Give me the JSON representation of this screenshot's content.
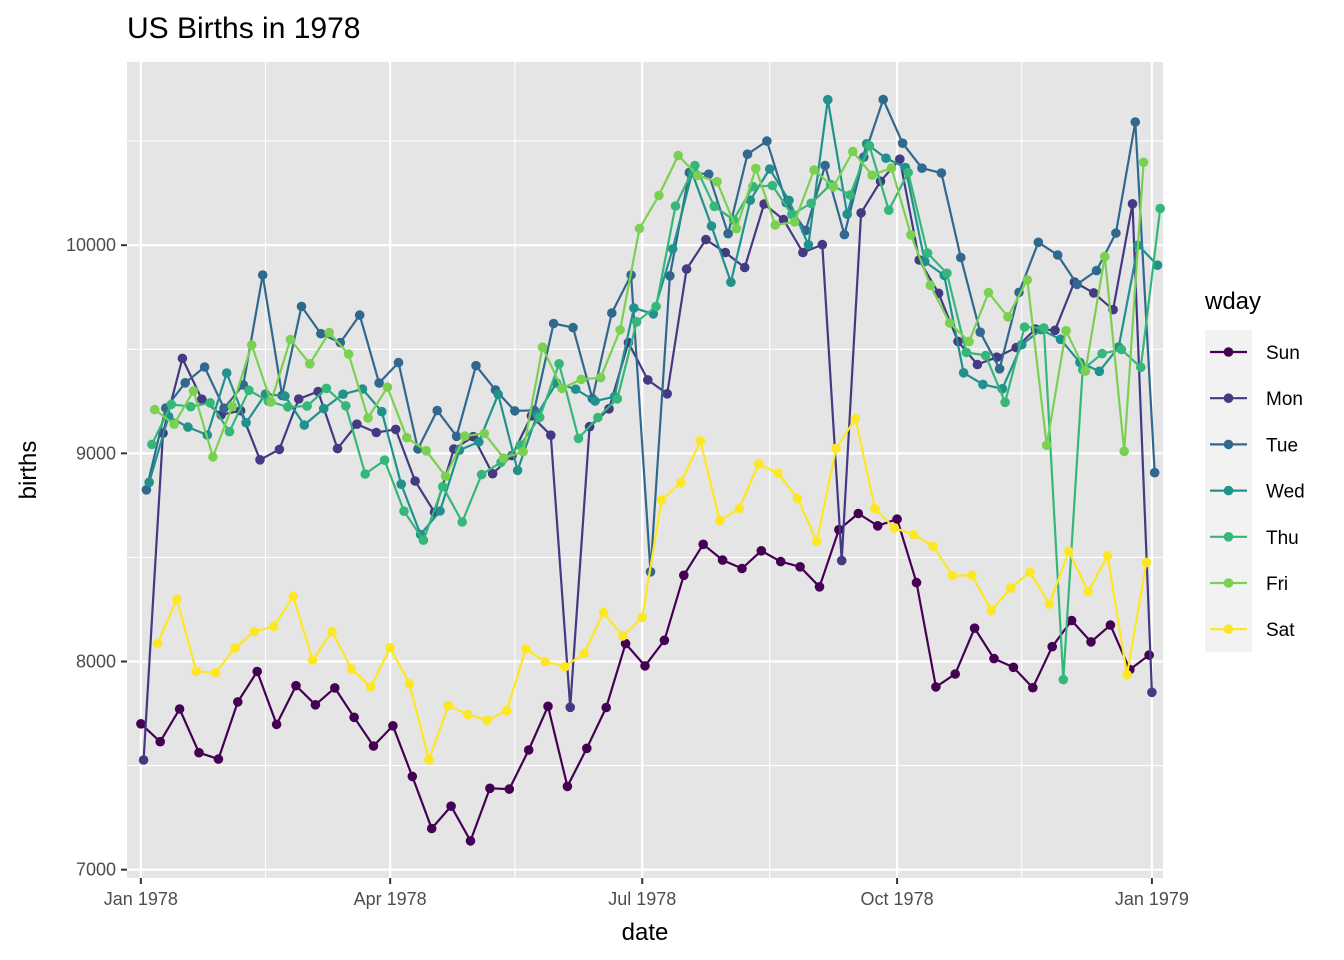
{
  "chart_data": {
    "type": "line",
    "title": "US Births in 1978",
    "xlabel": "date",
    "ylabel": "births",
    "x_axis": {
      "type": "date",
      "range": [
        "1977-12-27",
        "1979-01-05"
      ],
      "ticks": [
        {
          "date": "1978-01-01",
          "label": "Jan 1978"
        },
        {
          "date": "1978-04-01",
          "label": "Apr 1978"
        },
        {
          "date": "1978-07-01",
          "label": "Jul 1978"
        },
        {
          "date": "1978-10-01",
          "label": "Oct 1978"
        },
        {
          "date": "1979-01-01",
          "label": "Jan 1979"
        }
      ],
      "minor_ticks": [
        "1978-02-15",
        "1978-05-16",
        "1978-08-16",
        "1978-11-15"
      ]
    },
    "y_axis": {
      "range": [
        6960,
        10880
      ],
      "ticks": [
        7000,
        8000,
        9000,
        10000
      ],
      "minor_ticks": [
        7500,
        8500,
        9500,
        10500
      ]
    },
    "grid": true,
    "legend": {
      "title": "wday",
      "placement": "right"
    },
    "colors": {
      "panel_background": "#e5e5e5",
      "grid": "#ffffff"
    },
    "series": [
      {
        "name": "Sun",
        "color": "#440154",
        "start": "1978-01-01",
        "values": [
          7701,
          7615,
          7772,
          7562,
          7531,
          7806,
          7952,
          7698,
          7884,
          7792,
          7873,
          7732,
          7594,
          7691,
          7448,
          7198,
          7305,
          7138,
          7391,
          7387,
          7575,
          7785,
          7400,
          7583,
          7779,
          8086,
          7979,
          8102,
          8414,
          8563,
          8487,
          8447,
          8532,
          8480,
          8455,
          8359,
          8633,
          8711,
          8652,
          8684,
          8379,
          7878,
          7940,
          8160,
          8014,
          7972,
          7874,
          8071,
          8197,
          8094,
          8175,
          7961,
          8031
        ]
      },
      {
        "name": "Mon",
        "color": "#443983",
        "start": "1978-01-02",
        "values": [
          7527,
          9097,
          9456,
          9260,
          9185,
          9205,
          8969,
          9019,
          9261,
          9297,
          9023,
          9140,
          9100,
          9115,
          8867,
          8717,
          9021,
          9080,
          8902,
          8989,
          9180,
          9087,
          7780,
          9128,
          9214,
          9532,
          9353,
          9286,
          9885,
          10027,
          9965,
          9893,
          10198,
          10123,
          9965,
          10003,
          8485,
          10155,
          10307,
          10413,
          9929,
          9769,
          9538,
          9427,
          9462,
          9508,
          9597,
          9591,
          9823,
          9771,
          9690,
          10199,
          7852
        ]
      },
      {
        "name": "Tue",
        "color": "#31688e",
        "start": "1978-01-03",
        "values": [
          8825,
          9218,
          9339,
          9415,
          9217,
          9329,
          9857,
          9278,
          9706,
          9575,
          9532,
          9664,
          9338,
          9436,
          9021,
          9206,
          9082,
          9421,
          9305,
          9204,
          9207,
          9624,
          9604,
          9263,
          9674,
          9857,
          8431,
          9853,
          10349,
          10341,
          10055,
          10437,
          10500,
          10204,
          10071,
          10383,
          10051,
          10423,
          10700,
          10490,
          10370,
          10347,
          9941,
          9582,
          9406,
          9773,
          10014,
          9953,
          9812,
          9878,
          10058,
          10592,
          8907
        ]
      },
      {
        "name": "Wed",
        "color": "#21918c",
        "start": "1978-01-04",
        "values": [
          8861,
          9177,
          9126,
          9088,
          9386,
          9147,
          9285,
          9275,
          9136,
          9215,
          9284,
          9309,
          9200,
          8852,
          8610,
          8723,
          9015,
          9055,
          9283,
          8918,
          9185,
          9338,
          9308,
          9251,
          9272,
          9698,
          9670,
          9982,
          10348,
          10092,
          9822,
          10216,
          10366,
          10215,
          10002,
          10699,
          10149,
          10487,
          10418,
          10373,
          9921,
          9855,
          9387,
          9331,
          9310,
          9522,
          9594,
          9548,
          9437,
          9394,
          9511,
          10000,
          9904
        ]
      },
      {
        "name": "Thu",
        "color": "#35b779",
        "start": "1978-01-05",
        "values": [
          9043,
          9235,
          9224,
          9243,
          9104,
          9303,
          9251,
          9223,
          9227,
          9312,
          9228,
          8901,
          8967,
          8722,
          8583,
          8840,
          8670,
          8898,
          8957,
          9040,
          9173,
          9430,
          9072,
          9172,
          9262,
          9632,
          9706,
          10188,
          10383,
          10187,
          10122,
          10281,
          10286,
          10148,
          10201,
          10292,
          10241,
          10478,
          10168,
          10349,
          9962,
          9865,
          9485,
          9470,
          9245,
          9607,
          9602,
          7913,
          9402,
          9479,
          9499,
          9413,
          10176
        ]
      },
      {
        "name": "Fri",
        "color": "#7ad151",
        "start": "1978-01-06",
        "values": [
          9210,
          9140,
          9300,
          8983,
          9226,
          9521,
          9247,
          9547,
          9430,
          9580,
          9477,
          9170,
          9318,
          9075,
          9012,
          8890,
          9083,
          9096,
          8977,
          9008,
          9510,
          9312,
          9355,
          9364,
          9593,
          10080,
          10239,
          10431,
          10335,
          10305,
          10079,
          10369,
          10097,
          10112,
          10361,
          10280,
          10450,
          10336,
          10371,
          10050,
          9808,
          9626,
          9537,
          9772,
          9656,
          9833,
          9039,
          9589,
          9395,
          9945,
          9010,
          10398
        ]
      },
      {
        "name": "Sat",
        "color": "#fde725",
        "start": "1978-01-07",
        "values": [
          8087,
          8299,
          7953,
          7946,
          8065,
          8144,
          8169,
          8312,
          8007,
          8144,
          7965,
          7878,
          8066,
          7893,
          7528,
          7788,
          7746,
          7717,
          7763,
          8060,
          7999,
          7975,
          8039,
          8235,
          8123,
          8212,
          8775,
          8860,
          9060,
          8677,
          8735,
          8950,
          8904,
          8784,
          8577,
          9024,
          9167,
          8734,
          8642,
          8609,
          8554,
          8413,
          8414,
          8245,
          8352,
          8430,
          8276,
          8529,
          8336,
          8508,
          7937,
          8476
        ]
      }
    ]
  }
}
